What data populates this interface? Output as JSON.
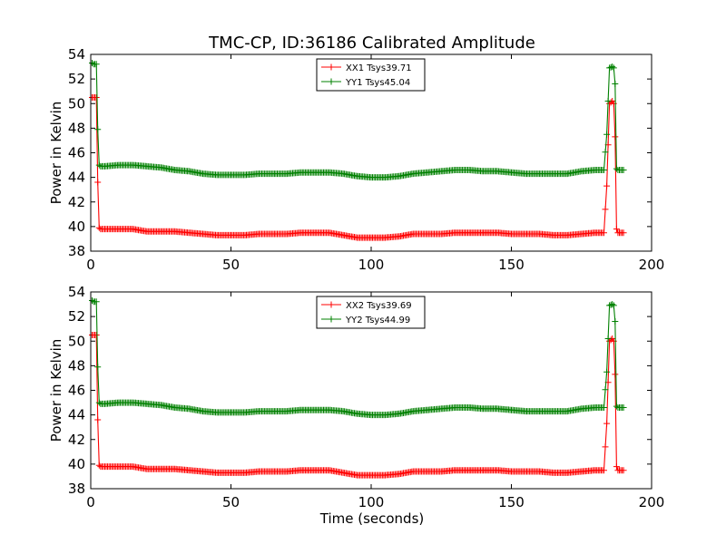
{
  "title": "TMC-CP, ID:36186 Calibrated Amplitude",
  "xlabel": "Time (seconds)",
  "colors": {
    "xx": "#ff0000",
    "yy": "#008000"
  },
  "chart_data": [
    {
      "type": "line",
      "ylabel": "Power in Kelvin",
      "xlim": [
        0,
        200
      ],
      "ylim": [
        38,
        54
      ],
      "xticks": [
        0,
        50,
        100,
        150,
        200
      ],
      "yticks": [
        38,
        40,
        42,
        44,
        46,
        48,
        50,
        52,
        54
      ],
      "grid": false,
      "legend_position": "top-center",
      "series": [
        {
          "name": "XX1 Tsys39.71",
          "color": "#ff0000",
          "x": [
            0.5,
            1,
            1.5,
            2,
            2.5,
            3,
            3.5,
            5,
            10,
            15,
            20,
            25,
            30,
            35,
            40,
            45,
            50,
            55,
            60,
            65,
            70,
            75,
            80,
            85,
            90,
            95,
            100,
            105,
            110,
            115,
            120,
            125,
            130,
            135,
            140,
            145,
            150,
            155,
            160,
            165,
            170,
            175,
            180,
            183,
            184,
            185,
            186,
            186.5,
            187,
            187.5,
            188,
            189,
            190
          ],
          "y": [
            50.5,
            50.5,
            50.5,
            50.5,
            43.6,
            39.9,
            39.8,
            39.8,
            39.8,
            39.8,
            39.6,
            39.6,
            39.6,
            39.5,
            39.4,
            39.3,
            39.3,
            39.3,
            39.4,
            39.4,
            39.4,
            39.5,
            39.5,
            39.5,
            39.3,
            39.1,
            39.1,
            39.1,
            39.2,
            39.4,
            39.4,
            39.4,
            39.5,
            39.5,
            39.5,
            39.5,
            39.4,
            39.4,
            39.4,
            39.3,
            39.3,
            39.4,
            39.5,
            39.5,
            43.3,
            50.0,
            50.2,
            50.0,
            47.3,
            39.8,
            39.5,
            39.5,
            39.5
          ]
        },
        {
          "name": "YY1 Tsys45.04",
          "color": "#008000",
          "x": [
            0.5,
            1,
            1.5,
            2,
            2.5,
            3,
            3.5,
            5,
            10,
            15,
            20,
            25,
            30,
            35,
            40,
            45,
            50,
            55,
            60,
            65,
            70,
            75,
            80,
            85,
            90,
            95,
            100,
            105,
            110,
            115,
            120,
            125,
            130,
            135,
            140,
            145,
            150,
            155,
            160,
            165,
            170,
            175,
            180,
            183,
            184,
            185,
            186,
            186.5,
            187,
            187.5,
            188,
            189,
            190
          ],
          "y": [
            53.3,
            53.2,
            53.2,
            53.2,
            47.9,
            45.0,
            44.9,
            44.9,
            45.0,
            45.0,
            44.9,
            44.8,
            44.6,
            44.5,
            44.3,
            44.2,
            44.2,
            44.2,
            44.3,
            44.3,
            44.3,
            44.4,
            44.4,
            44.4,
            44.3,
            44.1,
            44.0,
            44.0,
            44.1,
            44.3,
            44.4,
            44.5,
            44.6,
            44.6,
            44.5,
            44.5,
            44.4,
            44.3,
            44.3,
            44.3,
            44.3,
            44.5,
            44.6,
            44.6,
            47.5,
            52.9,
            53.0,
            52.9,
            51.6,
            44.7,
            44.6,
            44.6,
            44.6
          ]
        }
      ]
    },
    {
      "type": "line",
      "ylabel": "Power in Kelvin",
      "xlim": [
        0,
        200
      ],
      "ylim": [
        38,
        54
      ],
      "xticks": [
        0,
        50,
        100,
        150,
        200
      ],
      "yticks": [
        38,
        40,
        42,
        44,
        46,
        48,
        50,
        52,
        54
      ],
      "grid": false,
      "legend_position": "top-center",
      "series": [
        {
          "name": "XX2 Tsys39.69",
          "color": "#ff0000",
          "x": [
            0.5,
            1,
            1.5,
            2,
            2.5,
            3,
            3.5,
            5,
            10,
            15,
            20,
            25,
            30,
            35,
            40,
            45,
            50,
            55,
            60,
            65,
            70,
            75,
            80,
            85,
            90,
            95,
            100,
            105,
            110,
            115,
            120,
            125,
            130,
            135,
            140,
            145,
            150,
            155,
            160,
            165,
            170,
            175,
            180,
            183,
            184,
            185,
            186,
            186.5,
            187,
            187.5,
            188,
            189,
            190
          ],
          "y": [
            50.5,
            50.5,
            50.5,
            50.5,
            43.6,
            39.9,
            39.8,
            39.8,
            39.8,
            39.8,
            39.6,
            39.6,
            39.6,
            39.5,
            39.4,
            39.3,
            39.3,
            39.3,
            39.4,
            39.4,
            39.4,
            39.5,
            39.5,
            39.5,
            39.3,
            39.1,
            39.1,
            39.1,
            39.2,
            39.4,
            39.4,
            39.4,
            39.5,
            39.5,
            39.5,
            39.5,
            39.4,
            39.4,
            39.4,
            39.3,
            39.3,
            39.4,
            39.5,
            39.5,
            43.3,
            50.0,
            50.2,
            50.0,
            47.3,
            39.8,
            39.5,
            39.5,
            39.5
          ]
        },
        {
          "name": "YY2 Tsys44.99",
          "color": "#008000",
          "x": [
            0.5,
            1,
            1.5,
            2,
            2.5,
            3,
            3.5,
            5,
            10,
            15,
            20,
            25,
            30,
            35,
            40,
            45,
            50,
            55,
            60,
            65,
            70,
            75,
            80,
            85,
            90,
            95,
            100,
            105,
            110,
            115,
            120,
            125,
            130,
            135,
            140,
            145,
            150,
            155,
            160,
            165,
            170,
            175,
            180,
            183,
            184,
            185,
            186,
            186.5,
            187,
            187.5,
            188,
            189,
            190
          ],
          "y": [
            53.3,
            53.2,
            53.2,
            53.2,
            47.9,
            45.0,
            44.9,
            44.9,
            45.0,
            45.0,
            44.9,
            44.8,
            44.6,
            44.5,
            44.3,
            44.2,
            44.2,
            44.2,
            44.3,
            44.3,
            44.3,
            44.4,
            44.4,
            44.4,
            44.3,
            44.1,
            44.0,
            44.0,
            44.1,
            44.3,
            44.4,
            44.5,
            44.6,
            44.6,
            44.5,
            44.5,
            44.4,
            44.3,
            44.3,
            44.3,
            44.3,
            44.5,
            44.6,
            44.6,
            47.5,
            52.9,
            53.0,
            52.9,
            51.6,
            44.7,
            44.6,
            44.6,
            44.6
          ]
        }
      ]
    }
  ]
}
